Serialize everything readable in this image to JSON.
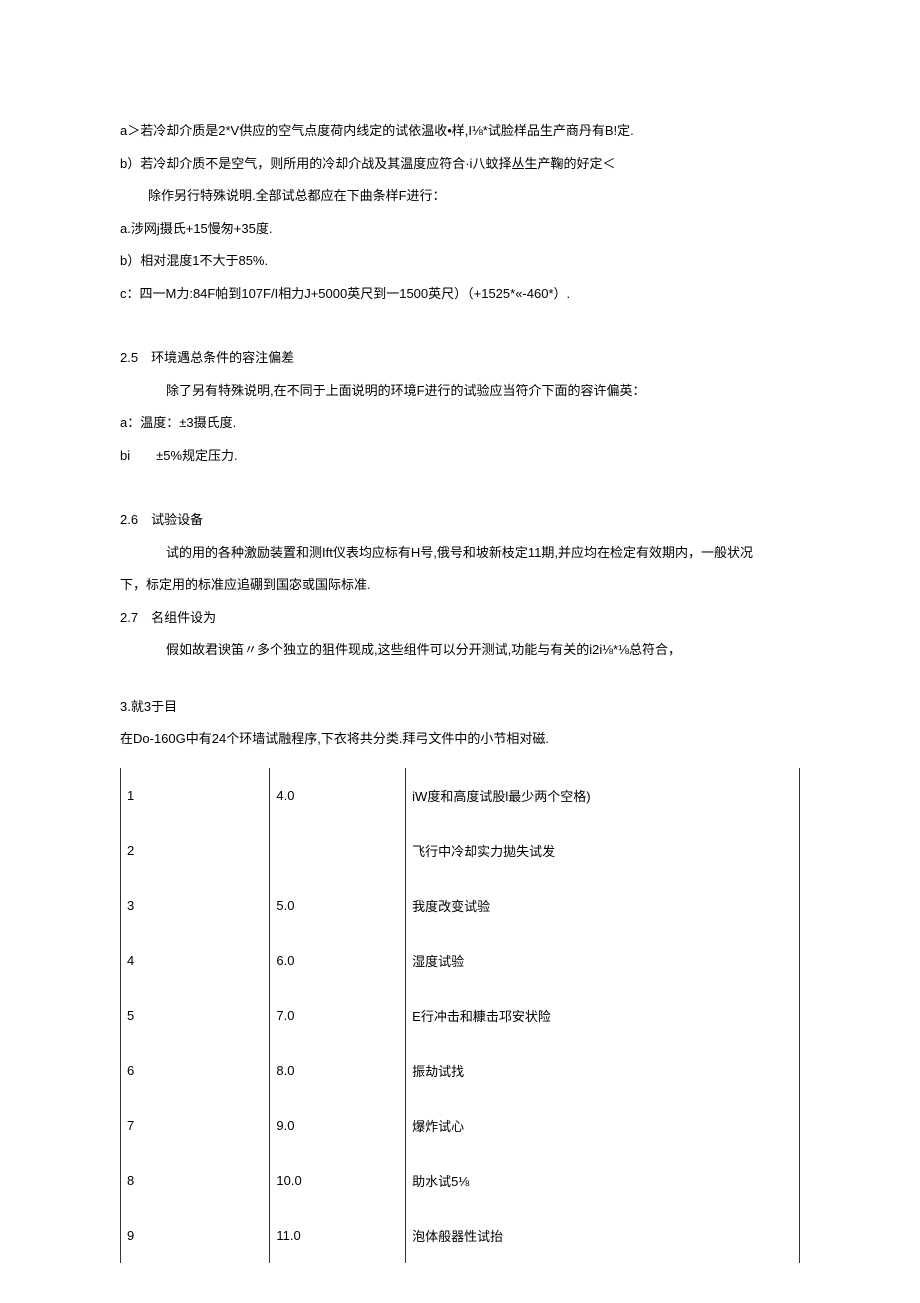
{
  "lines": {
    "a1": "a＞若冷却介质是2*V供应的空气点度荷内线定的试依温收•样,I⅛*试脸样品生产商丹有B!定.",
    "b1": "b）若冷却介质不是空气，则所用的冷却介战及其温度应符合·i八蚊择丛生产鞠的好定＜",
    "b1_indent": "除作另行特殊说明.全部试总都应在下曲条样F进行：",
    "a2": "a.涉网j摄氏+15慢匆+35度.",
    "b2": "b）相对混度1不大于85%.",
    "c1": "c：四一M力:84F帕到107F/I相力J+5000英尺到一1500英尺）（+1525*«-460*）.",
    "s25_header": "2.5　环境遇总条件的容注偏差",
    "s25_body": "除了另有特殊说明,在不同于上面说明的环境F进行的试验应当符介下面的容许偏英：",
    "s25_a": "a：温度：±3摄氏度.",
    "s25_b": "bi　　±5%规定压力.",
    "s26_header": "2.6　试验设备",
    "s26_body": "试的用的各种激励装置和测Ift仪表均应标有H号,俄号和坡新枝定11期,并应均在检定有效期内，一般状况",
    "s26_cont": "下，标定用的标准应追硼到国宓或国际标准.",
    "s27_header": "2.7　名组件设为",
    "s27_body": "假如故君谀笛〃多个独立的狙件现成,这些组件可以分开测试,功能与有关的i2i⅛*⅛总符合，",
    "s3": "3.就3于目",
    "s3_body": "在Do-160G中有24个环墙试融程序,下衣将共分类.拜弓文件中的小节相对磁."
  },
  "table": {
    "rows": [
      {
        "c1": "1",
        "c2": "4.0",
        "c3": "iW度和高度试股l最少两个空格)"
      },
      {
        "c1": "2",
        "c2": "",
        "c3": "飞行中冷却实力拋失试发"
      },
      {
        "c1": "3",
        "c2": "5.0",
        "c3": "我度改变试验"
      },
      {
        "c1": "4",
        "c2": "6.0",
        "c3": "湿度试验"
      },
      {
        "c1": "5",
        "c2": "7.0",
        "c3": "E行冲击和糠击邛安状险"
      },
      {
        "c1": "6",
        "c2": "8.0",
        "c3": "振劫试找"
      },
      {
        "c1": "7",
        "c2": "9.0",
        "c3": "爆炸试心"
      },
      {
        "c1": "8",
        "c2": "10.0",
        "c3": "助水试5⅛"
      },
      {
        "c1": "9",
        "c2": "11.0",
        "c3": "泡体般器性试抬"
      }
    ]
  }
}
